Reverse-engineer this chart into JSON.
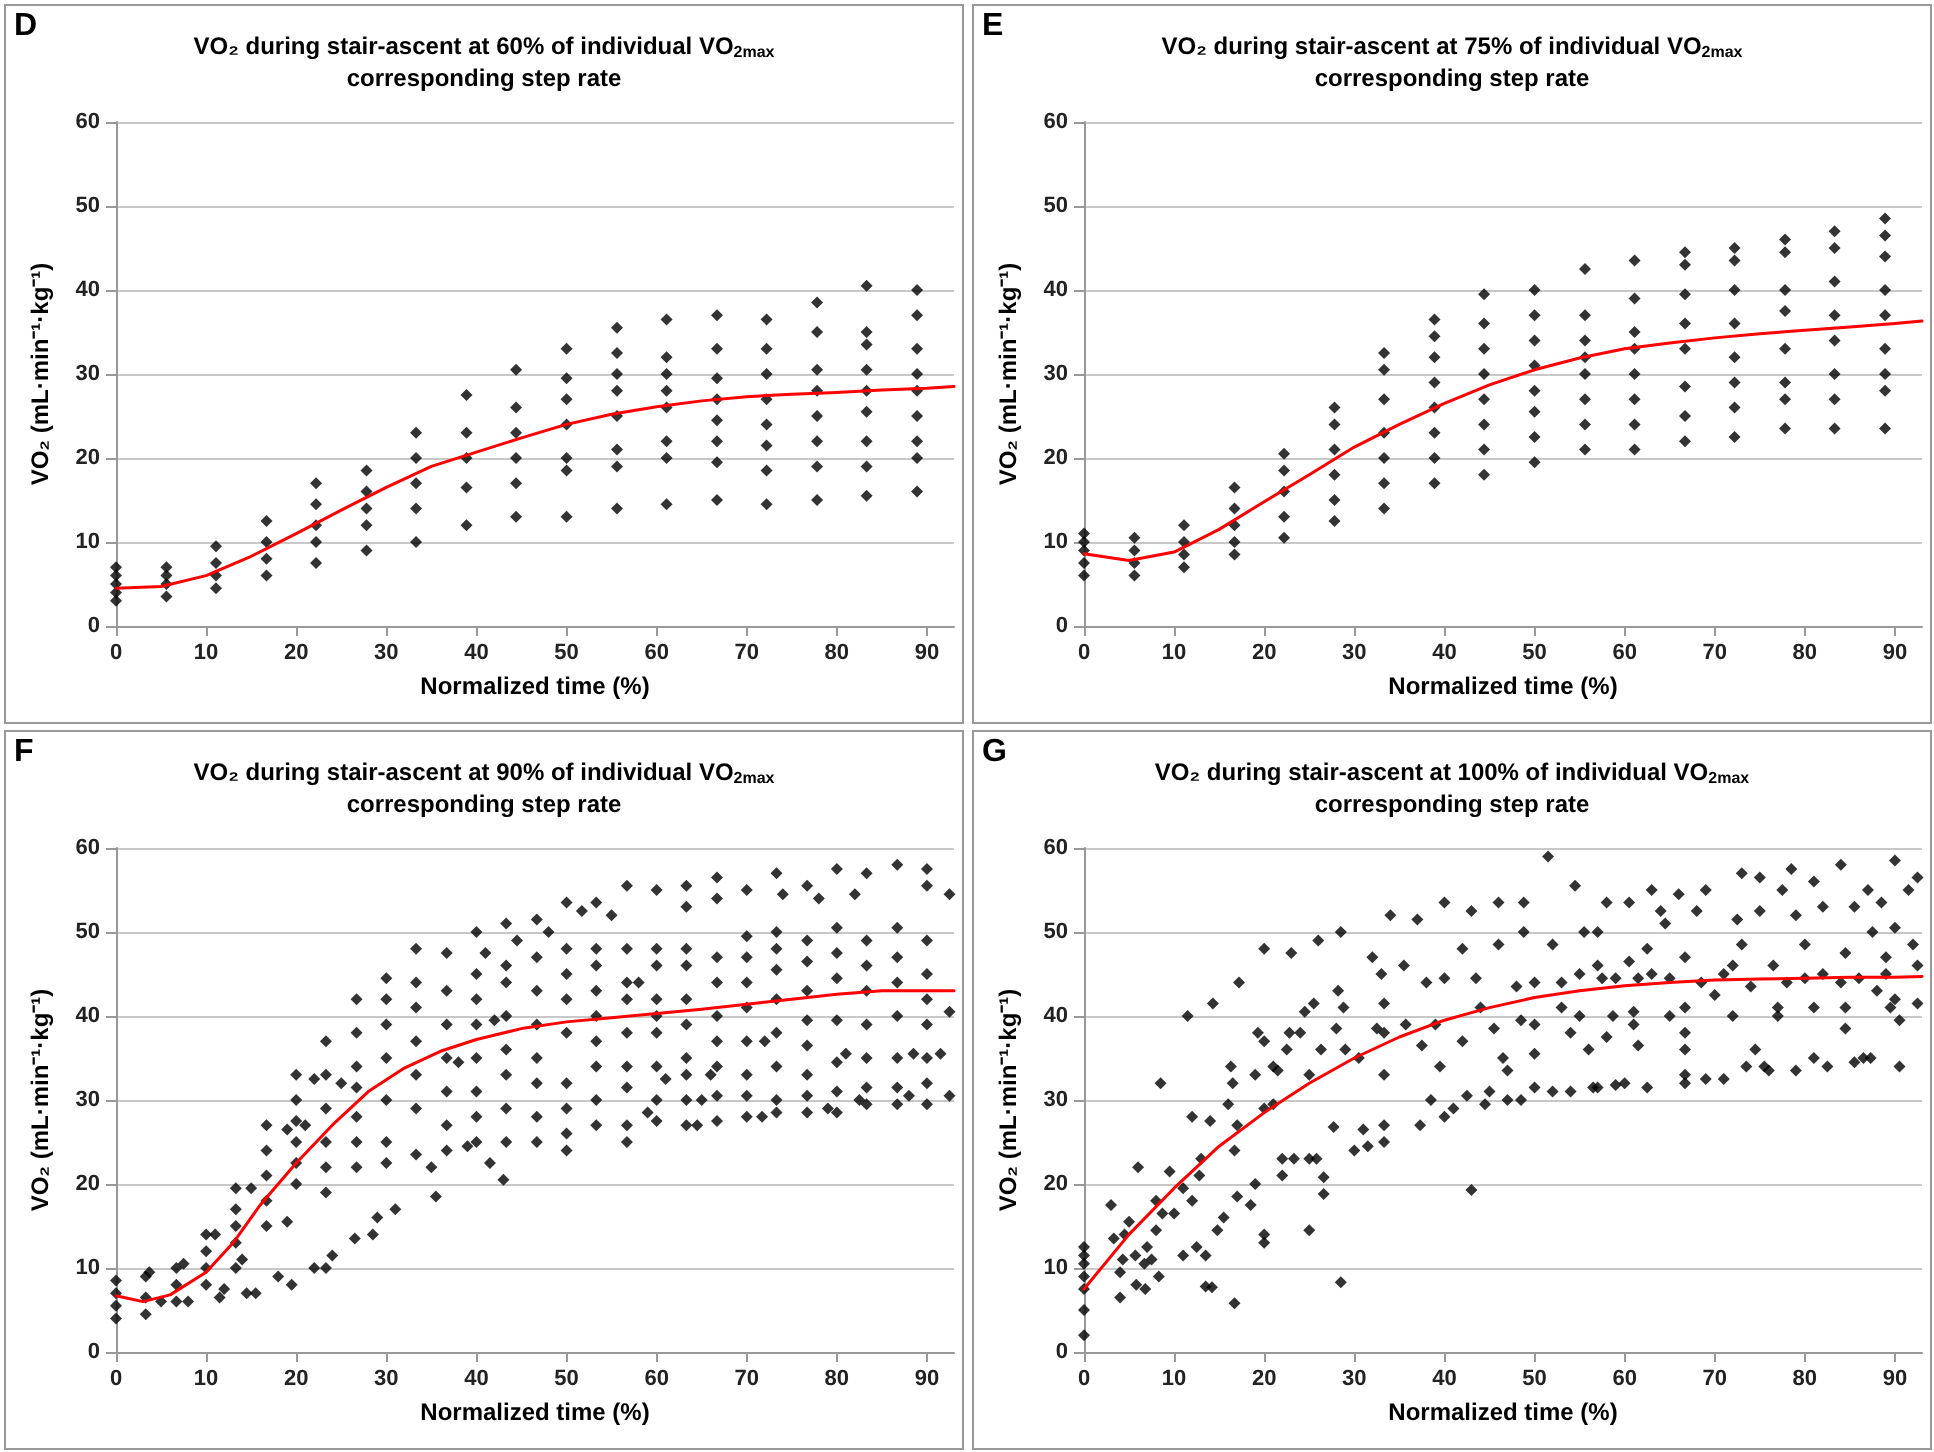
{
  "chart_data": [
    {
      "type": "scatter",
      "title": "VO₂ during stair-ascent at 60% of individual VO$_{2max}$",
      "subtitle": "corresponding step rate",
      "annotations": [
        "D"
      ],
      "xlabel": "Normalized time (%)",
      "ylabel": "VO₂ (mL·min⁻¹·kg⁻¹)",
      "xlim": [
        0,
        93
      ],
      "xticks": [
        0,
        10,
        20,
        30,
        40,
        50,
        60,
        70,
        80,
        90
      ],
      "ylim": [
        0,
        60
      ],
      "yticks": [
        0,
        10,
        20,
        30,
        40,
        50,
        60
      ],
      "grid": "y",
      "marker": "diamond",
      "series": [
        {
          "color": "#000000",
          "x": [
            0,
            0,
            0,
            0,
            0,
            5.6,
            5.6,
            5.6,
            5.6,
            11.1,
            11.1,
            11.1,
            11.1,
            16.7,
            16.7,
            16.7,
            16.7,
            22.2,
            22.2,
            22.2,
            22.2,
            22.2,
            27.8,
            27.8,
            27.8,
            27.8,
            27.8,
            33.3,
            33.3,
            33.3,
            33.3,
            33.3,
            38.9,
            38.9,
            38.9,
            38.9,
            38.9,
            44.4,
            44.4,
            44.4,
            44.4,
            44.4,
            44.4,
            50,
            50,
            50,
            50,
            50,
            50,
            50,
            55.6,
            55.6,
            55.6,
            55.6,
            55.6,
            55.6,
            55.6,
            55.6,
            61.1,
            61.1,
            61.1,
            61.1,
            61.1,
            61.1,
            61.1,
            61.1,
            66.7,
            66.7,
            66.7,
            66.7,
            66.7,
            66.7,
            66.7,
            66.7,
            72.2,
            72.2,
            72.2,
            72.2,
            72.2,
            72.2,
            72.2,
            72.2,
            77.8,
            77.8,
            77.8,
            77.8,
            77.8,
            77.8,
            77.8,
            77.8,
            83.3,
            83.3,
            83.3,
            83.3,
            83.3,
            83.3,
            83.3,
            83.3,
            83.3,
            88.9,
            88.9,
            88.9,
            88.9,
            88.9,
            88.9,
            88.9,
            88.9,
            88.9
          ],
          "values": [
            3,
            4,
            5,
            6,
            7,
            3.5,
            5,
            6,
            7,
            4.5,
            6,
            7.5,
            9.5,
            6,
            8,
            10,
            12.5,
            7.5,
            10,
            12,
            14.5,
            17,
            9,
            12,
            14,
            16,
            18.5,
            10,
            14,
            17,
            20,
            23,
            12,
            16.5,
            20,
            23,
            27.5,
            13,
            17,
            20,
            23,
            26,
            30.5,
            13,
            18.5,
            20,
            24,
            27,
            29.5,
            33,
            14,
            19,
            21,
            25,
            28,
            30,
            32.5,
            35.5,
            14.5,
            20,
            22,
            26,
            28,
            30,
            32,
            36.5,
            15,
            19.5,
            22,
            24.5,
            27,
            29.5,
            33,
            37,
            14.5,
            18.5,
            21.5,
            24,
            27,
            30,
            33,
            36.5,
            15,
            19,
            22,
            25,
            28,
            30.5,
            35,
            38.5,
            15.5,
            19,
            22,
            25.5,
            28,
            30.5,
            33.5,
            35,
            40.5,
            16,
            20,
            22,
            25,
            28,
            30,
            33,
            37,
            40
          ]
        },
        {
          "type": "line",
          "marker": "none",
          "color": "#ff0000",
          "x": [
            0,
            5,
            10,
            15,
            20,
            25,
            30,
            35,
            40,
            45,
            50,
            55,
            60,
            65,
            70,
            75,
            80,
            85,
            90,
            93
          ],
          "values": [
            4.5,
            4.7,
            6,
            8.3,
            11,
            13.8,
            16.5,
            19,
            20.7,
            22.4,
            24,
            25.2,
            26.1,
            26.8,
            27.3,
            27.6,
            27.8,
            28.1,
            28.3,
            28.5
          ]
        }
      ]
    },
    {
      "type": "scatter",
      "title": "VO₂ during stair-ascent at 75% of individual VO$_{2max}$",
      "subtitle": "corresponding step rate",
      "annotations": [
        "E"
      ],
      "xlabel": "Normalized time (%)",
      "ylabel": "VO₂ (mL·min⁻¹·kg⁻¹)",
      "xlim": [
        0,
        93
      ],
      "xticks": [
        0,
        10,
        20,
        30,
        40,
        50,
        60,
        70,
        80,
        90
      ],
      "ylim": [
        0,
        60
      ],
      "yticks": [
        0,
        10,
        20,
        30,
        40,
        50,
        60
      ],
      "grid": "y",
      "marker": "diamond",
      "series": [
        {
          "color": "#000000",
          "x": [
            0,
            0,
            0,
            0,
            0,
            5.6,
            5.6,
            5.6,
            5.6,
            11.1,
            11.1,
            11.1,
            11.1,
            16.7,
            16.7,
            16.7,
            16.7,
            16.7,
            22.2,
            22.2,
            22.2,
            22.2,
            22.2,
            27.8,
            27.8,
            27.8,
            27.8,
            27.8,
            27.8,
            33.3,
            33.3,
            33.3,
            33.3,
            33.3,
            33.3,
            33.3,
            38.9,
            38.9,
            38.9,
            38.9,
            38.9,
            38.9,
            38.9,
            38.9,
            44.4,
            44.4,
            44.4,
            44.4,
            44.4,
            44.4,
            44.4,
            44.4,
            50,
            50,
            50,
            50,
            50,
            50,
            50,
            50,
            55.6,
            55.6,
            55.6,
            55.6,
            55.6,
            55.6,
            55.6,
            55.6,
            61.1,
            61.1,
            61.1,
            61.1,
            61.1,
            61.1,
            61.1,
            61.1,
            66.7,
            66.7,
            66.7,
            66.7,
            66.7,
            66.7,
            66.7,
            66.7,
            72.2,
            72.2,
            72.2,
            72.2,
            72.2,
            72.2,
            72.2,
            72.2,
            77.8,
            77.8,
            77.8,
            77.8,
            77.8,
            77.8,
            77.8,
            77.8,
            83.3,
            83.3,
            83.3,
            83.3,
            83.3,
            83.3,
            83.3,
            83.3,
            88.9,
            88.9,
            88.9,
            88.9,
            88.9,
            88.9,
            88.9,
            88.9,
            88.9
          ],
          "values": [
            6,
            7.5,
            9,
            10,
            11,
            6,
            7.5,
            9,
            10.5,
            7,
            8.5,
            10,
            12,
            8.5,
            10,
            12,
            14,
            16.5,
            10.5,
            13,
            16,
            18.5,
            20.5,
            12.5,
            15,
            18,
            21,
            24,
            26,
            14,
            17,
            20,
            23,
            27,
            30.5,
            32.5,
            17,
            20,
            23,
            26,
            29,
            32,
            34.5,
            36.5,
            18,
            21,
            24,
            27,
            30,
            33,
            36,
            39.5,
            19.5,
            22.5,
            25.5,
            28,
            31,
            34,
            37,
            40,
            21,
            24,
            27,
            30,
            32,
            34,
            37,
            42.5,
            21,
            24,
            27,
            30,
            33,
            35,
            39,
            43.5,
            22,
            25,
            28.5,
            33,
            36,
            39.5,
            43,
            44.5,
            22.5,
            26,
            29,
            32,
            36,
            40,
            43.5,
            45,
            23.5,
            27,
            29,
            33,
            37.5,
            40,
            44.5,
            46,
            23.5,
            27,
            30,
            34,
            37,
            41,
            45,
            47,
            23.5,
            28,
            30,
            33,
            37,
            40,
            44,
            46.5,
            48.5
          ]
        },
        {
          "type": "line",
          "marker": "none",
          "color": "#ff0000",
          "x": [
            0,
            5,
            10,
            15,
            20,
            25,
            30,
            35,
            40,
            45,
            50,
            55,
            60,
            65,
            70,
            75,
            80,
            85,
            90,
            93
          ],
          "values": [
            8.6,
            7.8,
            8.8,
            11.5,
            14.8,
            18,
            21.3,
            24,
            26.5,
            28.7,
            30.5,
            31.9,
            33,
            33.7,
            34.3,
            34.8,
            35.2,
            35.6,
            36,
            36.3
          ]
        }
      ]
    },
    {
      "type": "scatter",
      "title": "VO₂ during stair-ascent at 90% of individual VO$_{2max}$",
      "subtitle": "corresponding step rate",
      "annotations": [
        "F"
      ],
      "xlabel": "Normalized time (%)",
      "ylabel": "VO₂ (mL·min⁻¹·kg⁻¹)",
      "xlim": [
        0,
        93
      ],
      "xticks": [
        0,
        10,
        20,
        30,
        40,
        50,
        60,
        70,
        80,
        90
      ],
      "ylim": [
        0,
        60
      ],
      "yticks": [
        0,
        10,
        20,
        30,
        40,
        50,
        60
      ],
      "grid": "y",
      "marker": "diamond",
      "series": [
        {
          "color": "#000000",
          "x": [
            0,
            0,
            0,
            0,
            3.3,
            3.3,
            3.3,
            3.7,
            5,
            6.7,
            6.7,
            6.7,
            7.5,
            8,
            10,
            10,
            10,
            10,
            11,
            11.5,
            12,
            13.3,
            13.3,
            13.3,
            13.3,
            13.3,
            14,
            14.5,
            15,
            15.5,
            16.7,
            16.7,
            16.7,
            16.7,
            16.7,
            18,
            19,
            19.5,
            20,
            20,
            20,
            20,
            20,
            20,
            19,
            21,
            22,
            22,
            23.3,
            23.3,
            23.3,
            23.3,
            23.3,
            23.3,
            23.3,
            24,
            25,
            26.5,
            26.7,
            26.7,
            26.7,
            26.7,
            26.7,
            26.7,
            26.7,
            28.5,
            29,
            30,
            30,
            30,
            30,
            30,
            30,
            30,
            31,
            33.3,
            33.3,
            33.3,
            33.3,
            33.3,
            33.3,
            33.3,
            35,
            35.5,
            36.7,
            36.7,
            36.7,
            36.7,
            36.7,
            36.7,
            36.7,
            38,
            39,
            40,
            40,
            40,
            40,
            40,
            40,
            40,
            40,
            41,
            41.5,
            43,
            42,
            43.3,
            43.3,
            43.3,
            43.3,
            43.3,
            43.3,
            43.3,
            43.3,
            44.5,
            46.7,
            46.7,
            46.7,
            46.7,
            46.7,
            46.7,
            46.7,
            46.7,
            48,
            50,
            50,
            50,
            50,
            50,
            50,
            50,
            50,
            50,
            51.7,
            53.3,
            53.3,
            53.3,
            53.3,
            53.3,
            53.3,
            53.3,
            53.3,
            53.3,
            55,
            56.7,
            56.7,
            56.7,
            56.7,
            56.7,
            56.7,
            56.7,
            56.7,
            56.7,
            58,
            59,
            60,
            60,
            60,
            60,
            60,
            60,
            60,
            60,
            60,
            61,
            63.3,
            63.3,
            63.3,
            63.3,
            63.3,
            63.3,
            63.3,
            63.3,
            63.3,
            63.3,
            64.5,
            65,
            66,
            66.7,
            66.7,
            66.7,
            66.7,
            66.7,
            66.7,
            66.7,
            66.7,
            66.7,
            70,
            70,
            70,
            70,
            70,
            70,
            70,
            70,
            70,
            71.7,
            72,
            73.3,
            73.3,
            73.3,
            73.3,
            73.3,
            73.3,
            73.3,
            73.3,
            73.3,
            74,
            76.7,
            76.7,
            76.7,
            76.7,
            76.7,
            76.7,
            76.7,
            76.7,
            76.7,
            78,
            79,
            80,
            80,
            80,
            80,
            80,
            80,
            80,
            80,
            81,
            82,
            82.5,
            83.3,
            83.3,
            83.3,
            83.3,
            83.3,
            83.3,
            83.3,
            83.3,
            86.7,
            86.7,
            86.7,
            86.7,
            86.7,
            86.7,
            86.7,
            86.7,
            88,
            88.5,
            90,
            90,
            90,
            90,
            90,
            90,
            90,
            90,
            90,
            91.5,
            92.5,
            92.5,
            92.5
          ],
          "values": [
            4,
            5.5,
            7,
            8.5,
            4.5,
            6.5,
            9,
            9.5,
            6,
            6,
            8,
            10,
            10.5,
            6,
            8,
            10,
            12,
            14,
            14,
            6.5,
            7.5,
            10,
            13,
            15,
            17,
            19.5,
            11,
            7,
            19.5,
            7,
            15,
            18,
            21,
            24,
            27,
            9,
            15.5,
            8,
            20,
            22.5,
            25,
            27.5,
            30,
            33,
            26.5,
            27,
            10,
            32.5,
            10,
            19,
            22,
            25,
            29,
            33,
            37,
            11.5,
            32,
            13.5,
            22,
            25,
            28,
            31.5,
            34,
            38,
            42,
            14,
            16,
            22.5,
            25,
            30,
            35,
            39,
            42,
            44.5,
            17,
            23.5,
            29,
            33,
            37,
            41,
            44,
            48,
            22,
            18.5,
            24,
            27,
            31,
            35,
            39,
            43,
            47.5,
            34.5,
            24.5,
            25,
            28,
            31,
            35,
            39,
            42,
            45,
            50,
            47.5,
            22.5,
            20.5,
            39.5,
            25,
            29,
            33,
            36,
            40,
            44,
            46,
            51,
            49,
            25,
            28,
            32,
            35,
            39,
            43,
            47,
            51.5,
            50,
            24,
            26,
            29,
            32,
            38,
            42,
            45,
            48,
            53.5,
            52.5,
            27,
            30,
            34,
            37,
            40,
            43,
            46,
            48,
            53.5,
            52,
            25,
            27,
            31.5,
            34,
            38,
            42,
            44,
            48,
            55.5,
            44,
            28.5,
            27.5,
            30,
            34,
            38,
            40,
            42,
            46,
            48,
            55,
            32.5,
            27,
            30,
            33,
            35,
            39,
            42,
            46,
            48,
            53,
            55.5,
            27,
            30,
            33,
            27.5,
            30.5,
            34,
            37,
            40,
            44,
            47,
            54,
            56.5,
            28,
            30.5,
            33,
            37,
            41,
            44,
            47,
            49.5,
            55,
            28,
            37,
            28.5,
            30,
            34,
            38,
            42,
            45.5,
            48,
            50,
            57,
            54.5,
            28.5,
            30.5,
            33,
            36.5,
            39.5,
            43,
            46.5,
            49,
            55.5,
            54,
            29,
            28.5,
            31,
            34.5,
            39.5,
            44.5,
            47.5,
            50.5,
            57.5,
            35.5,
            54.5,
            30,
            29.5,
            31.5,
            35,
            39,
            43,
            46,
            49,
            57,
            29.5,
            31.5,
            35,
            40,
            44,
            47,
            50.5,
            58,
            30.5,
            35.5,
            29.5,
            32,
            35,
            39,
            42,
            45,
            49,
            55.5,
            57.5,
            35.5,
            30.5,
            40.5,
            54.5
          ]
        },
        {
          "type": "line",
          "marker": "none",
          "color": "#ff0000",
          "x": [
            0,
            3,
            6,
            10,
            13,
            16,
            20,
            24,
            28,
            32,
            36,
            40,
            45,
            50,
            55,
            60,
            65,
            70,
            75,
            80,
            85,
            90,
            93
          ],
          "values": [
            6.7,
            6,
            6.8,
            9.5,
            13,
            17.5,
            22.5,
            27,
            31,
            33.8,
            35.8,
            37.2,
            38.5,
            39.3,
            39.8,
            40.3,
            40.8,
            41.4,
            42,
            42.6,
            43,
            43,
            43
          ]
        }
      ]
    },
    {
      "type": "scatter",
      "title": "VO₂ during stair-ascent at 100% of individual VO$_{2max}$",
      "subtitle": "corresponding step rate",
      "annotations": [
        "G"
      ],
      "xlabel": "Normalized time (%)",
      "ylabel": "VO₂ (mL·min⁻¹·kg⁻¹)",
      "xlim": [
        0,
        93
      ],
      "xticks": [
        0,
        10,
        20,
        30,
        40,
        50,
        60,
        70,
        80,
        90
      ],
      "ylim": [
        0,
        60
      ],
      "yticks": [
        0,
        10,
        20,
        30,
        40,
        50,
        60
      ],
      "grid": "y",
      "marker": "diamond",
      "series": [
        {
          "color": "#000000",
          "x": [
            0,
            0,
            0,
            0,
            0,
            0,
            0,
            3,
            3.3,
            4,
            4,
            4.3,
            4.5,
            5,
            5.7,
            5.8,
            6,
            6.7,
            6.8,
            7,
            7.5,
            8,
            8,
            8.3,
            8.5,
            8.7,
            9.5,
            10,
            11,
            11,
            11.5,
            12,
            12,
            12.5,
            12.8,
            13,
            13.5,
            13.5,
            14.2,
            14,
            14.3,
            14.8,
            15.5,
            16,
            16.3,
            16.5,
            16.7,
            16.7,
            17,
            17.2,
            17,
            18.5,
            19,
            19,
            19.3,
            20,
            20,
            20,
            20,
            20,
            21,
            21,
            21.5,
            22,
            22,
            22.5,
            23,
            22.8,
            23.3,
            24,
            24.5,
            25,
            25,
            25,
            25.5,
            25.8,
            26,
            26.3,
            26.6,
            26.6,
            27.7,
            28,
            28.2,
            28.5,
            28.5,
            28.8,
            29,
            30,
            30.5,
            31,
            31.5,
            32,
            32.5,
            33,
            33.3,
            33.3,
            33.3,
            33.3,
            33.3,
            34,
            35.5,
            35.7,
            37,
            37.3,
            37.5,
            38,
            38.5,
            39,
            39.5,
            40,
            40,
            40,
            41,
            42,
            42,
            42.5,
            43,
            43,
            43.5,
            44,
            44.5,
            45,
            45.5,
            46,
            46,
            46.5,
            47,
            47,
            48,
            48.5,
            48.5,
            48.8,
            48.8,
            50,
            50,
            50,
            50,
            51.5,
            52,
            52,
            53,
            53,
            54,
            54,
            54.5,
            55,
            55,
            55.5,
            56,
            56.5,
            57,
            57,
            57,
            57.5,
            58,
            58,
            58.7,
            59,
            59,
            60,
            60.5,
            60.5,
            61,
            61,
            61.5,
            61.5,
            62.5,
            62.5,
            63,
            63,
            64,
            64.5,
            65,
            65,
            66,
            66.7,
            66.7,
            66.7,
            66.7,
            66.7,
            66.7,
            68,
            68.5,
            69,
            69,
            70,
            71,
            71,
            72,
            72,
            72.5,
            73,
            73,
            73.5,
            74,
            74.5,
            75,
            75,
            75.5,
            76,
            76.5,
            77,
            77,
            77.5,
            78,
            78.5,
            79,
            79,
            80,
            80,
            81,
            81,
            81,
            82,
            82,
            82.5,
            84,
            84,
            84.5,
            84.5,
            84.5,
            85.5,
            85.5,
            86,
            86.5,
            87.3,
            87.5,
            87,
            88,
            88.5,
            89,
            89,
            89.5,
            90,
            90,
            90.5,
            90.5,
            90,
            91.5,
            92,
            92.5,
            92.5,
            92.5
          ],
          "values": [
            2,
            5,
            7.5,
            9,
            10.5,
            11.5,
            12.5,
            17.5,
            13.5,
            6.5,
            9.5,
            11,
            14,
            15.5,
            11.5,
            8,
            22,
            10.5,
            7.5,
            12.5,
            11,
            18,
            14.5,
            9,
            32,
            16.5,
            21.5,
            16.5,
            19.5,
            11.5,
            40,
            28,
            18,
            12.5,
            21,
            23,
            11.5,
            7.8,
            7.7,
            27.5,
            41.5,
            14.5,
            16,
            29.5,
            34,
            32,
            24,
            5.8,
            27,
            44,
            18.5,
            17.5,
            20,
            33,
            38,
            37,
            14,
            13,
            29,
            48,
            29.5,
            34,
            33.5,
            23,
            21,
            36,
            47.5,
            38,
            23,
            38,
            40.5,
            33,
            23,
            14.5,
            41.5,
            23,
            49,
            36,
            20.8,
            18.8,
            26.8,
            38.5,
            43,
            8.3,
            50,
            41,
            36,
            24,
            35,
            26.5,
            24.5,
            47,
            38.5,
            45,
            25,
            27,
            33,
            38,
            41.5,
            52,
            46,
            39,
            51.5,
            27,
            36.5,
            44,
            30,
            39,
            34,
            28,
            44.5,
            53.5,
            29,
            48,
            37,
            30.5,
            19.3,
            52.5,
            44.5,
            41,
            29.5,
            31,
            38.5,
            48.5,
            53.5,
            35,
            33.5,
            30,
            43.5,
            39.5,
            30,
            50,
            53.5,
            35.5,
            39,
            44,
            31.5,
            59,
            48.5,
            31,
            44,
            41,
            38,
            31,
            55.5,
            40,
            45,
            50,
            36,
            31.5,
            46,
            50,
            31.5,
            44.5,
            53.5,
            37.5,
            40,
            44.5,
            31.8,
            32,
            53.5,
            46.5,
            40.5,
            39,
            44.5,
            36.5,
            48,
            31.5,
            45,
            55,
            52.5,
            51,
            40,
            44.5,
            54.5,
            47,
            41,
            38,
            36,
            33,
            32,
            52.5,
            44,
            32.5,
            55,
            42.5,
            45,
            32.5,
            46,
            40,
            51.5,
            57,
            48.5,
            34,
            43.5,
            36,
            56.5,
            52.5,
            34,
            33.5,
            46,
            41,
            40,
            55,
            44,
            57.5,
            52,
            33.5,
            48.5,
            44.5,
            56,
            41,
            35,
            53,
            45,
            34,
            44,
            58,
            47.5,
            41,
            38.5,
            53,
            34.5,
            44.5,
            35,
            35,
            50,
            55,
            43,
            53.5,
            45,
            47,
            41,
            58.5,
            42,
            34,
            39.5,
            50.5,
            55,
            48.5,
            56.5,
            46,
            41.5
          ]
        },
        {
          "type": "line",
          "marker": "none",
          "color": "#ff0000",
          "x": [
            0,
            5,
            10,
            15,
            20,
            25,
            30,
            35,
            40,
            45,
            50,
            55,
            60,
            65,
            70,
            75,
            80,
            85,
            90,
            93
          ],
          "values": [
            7.5,
            14,
            19.5,
            24.5,
            28.5,
            32,
            35,
            37.5,
            39.5,
            41,
            42.2,
            43,
            43.6,
            44,
            44.3,
            44.4,
            44.5,
            44.6,
            44.6,
            44.7
          ]
        }
      ]
    }
  ]
}
